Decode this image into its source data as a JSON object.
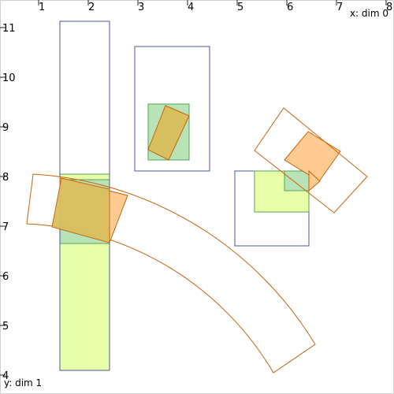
{
  "axes": {
    "x_title": "x: dim 0",
    "y_title": "y: dim 1",
    "x_ticks": [
      "1",
      "2",
      "3",
      "4",
      "5",
      "6",
      "7",
      "8"
    ],
    "y_ticks": [
      "11",
      "10",
      "9",
      "8",
      "7",
      "6",
      "5",
      "4"
    ]
  },
  "colors": {
    "blue_outline": "#4a5a9e",
    "orange_outline": "#c8620a",
    "green_outline": "#58a058",
    "green_fill": "#b7e3b7",
    "lime_fill": "#e7ffa8",
    "orange_fill": "#ffcb92",
    "olive_fill": "#d8c060",
    "frame": "#bdbdbd"
  },
  "shapes": [
    {
      "name": "tall-rectangle",
      "kind": "rectangle",
      "style": "blue-outline"
    },
    {
      "name": "lime-column",
      "kind": "rectangle",
      "style": "lime-fill"
    },
    {
      "name": "green-overlap-column",
      "kind": "rectangle",
      "style": "green-fill"
    },
    {
      "name": "curved-orange-band",
      "kind": "annular-band",
      "style": "orange-outline"
    },
    {
      "name": "orange-overlap-patch",
      "kind": "polygon",
      "style": "orange-fill"
    },
    {
      "name": "olive-overlap-patch",
      "kind": "polygon",
      "style": "olive-fill"
    },
    {
      "name": "small-box",
      "kind": "rectangle",
      "style": "blue-outline"
    },
    {
      "name": "small-green-square",
      "kind": "rectangle",
      "style": "green-fill"
    },
    {
      "name": "small-tilted-rectangle",
      "kind": "polygon",
      "style": "olive-fill"
    },
    {
      "name": "right-box",
      "kind": "rectangle",
      "style": "blue-outline"
    },
    {
      "name": "right-lime-square",
      "kind": "rectangle",
      "style": "lime-fill"
    },
    {
      "name": "right-green-square",
      "kind": "rectangle",
      "style": "green-fill"
    },
    {
      "name": "tilted-orange-rectangle",
      "kind": "polygon",
      "style": "orange-outline"
    },
    {
      "name": "tilted-orange-fill",
      "kind": "polygon",
      "style": "orange-fill"
    },
    {
      "name": "tilted-orange-inner-fill",
      "kind": "polygon",
      "style": "orange-fill"
    }
  ]
}
